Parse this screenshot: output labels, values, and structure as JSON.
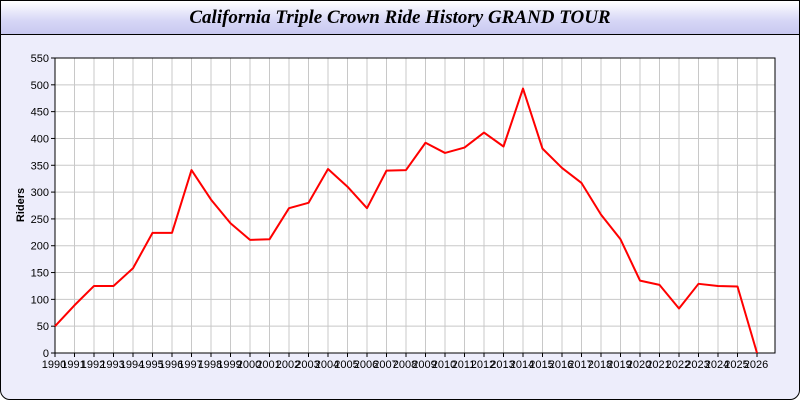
{
  "chart_data": {
    "type": "line",
    "title": "California Triple Crown Ride History GRAND TOUR",
    "xlabel": "",
    "ylabel": "Riders",
    "x": [
      1990,
      1991,
      1992,
      1993,
      1994,
      1995,
      1996,
      1997,
      1998,
      1999,
      2000,
      2001,
      2002,
      2003,
      2004,
      2005,
      2006,
      2007,
      2008,
      2009,
      2010,
      2011,
      2012,
      2013,
      2014,
      2015,
      2016,
      2017,
      2018,
      2019,
      2020,
      2021,
      2022,
      2023,
      2024,
      2025,
      2026
    ],
    "series": [
      {
        "values": [
          50,
          89,
          125,
          125,
          158,
          224,
          224,
          341,
          286,
          242,
          211,
          212,
          270,
          280,
          343,
          310,
          270,
          340,
          341,
          392,
          373,
          383,
          411,
          385,
          493,
          381,
          345,
          317,
          258,
          212,
          135,
          127,
          83,
          129,
          125,
          124,
          0
        ],
        "color": "#ff0000"
      }
    ],
    "xlim": [
      1990,
      2027
    ],
    "ylim": [
      0,
      550
    ],
    "yticks": [
      0,
      50,
      100,
      150,
      200,
      250,
      300,
      350,
      400,
      450,
      500,
      550
    ],
    "grid": true,
    "legend": "none"
  }
}
